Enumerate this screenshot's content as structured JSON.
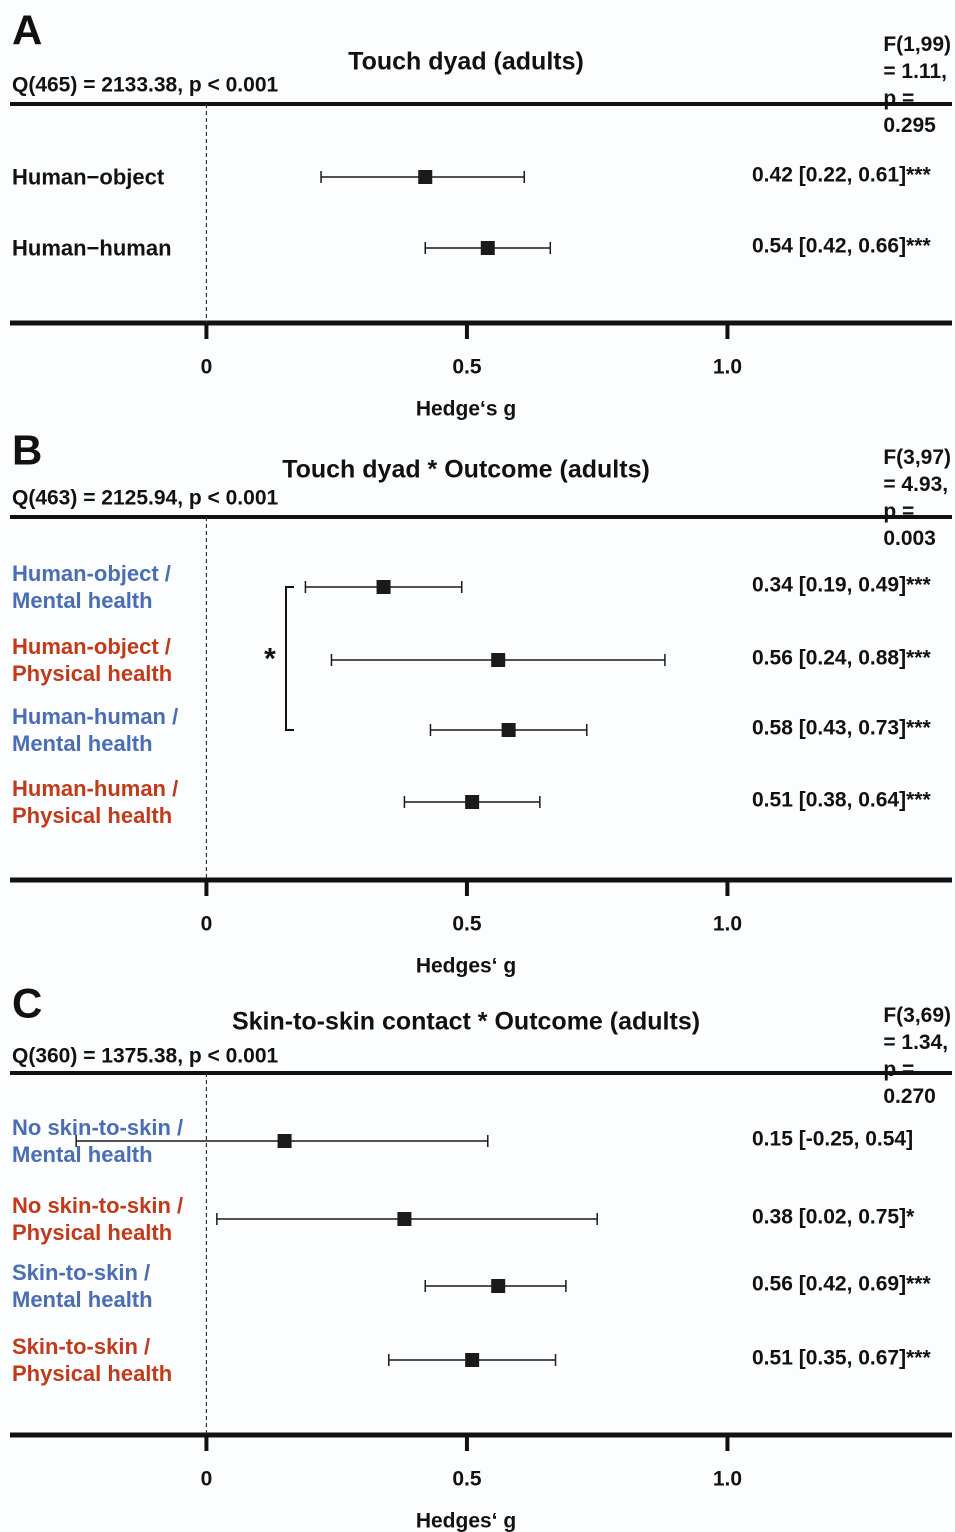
{
  "chart_data": [
    {
      "type": "forest",
      "panel": "A",
      "title": "Touch dyad (adults)",
      "stats_left": "Q(465) = 2133.38, p < 0.001",
      "stats_right": "F(1,99) = 1.11, p = 0.295",
      "categories": [
        "Human−object",
        "Human−human"
      ],
      "label_colors": [
        "#111111",
        "#111111"
      ],
      "values": [
        0.42,
        0.54
      ],
      "lower": [
        0.22,
        0.42
      ],
      "upper": [
        0.61,
        0.66
      ],
      "value_labels": [
        "0.42 [0.22, 0.61]***",
        "0.54 [0.42, 0.66]***"
      ],
      "xlim": [
        -0.377,
        1.431
      ],
      "xticks": [
        0,
        0.5,
        {
          "value": 1,
          "label": "1.0"
        }
      ],
      "reference_line": 0,
      "xlabel": "Hedge‘s g",
      "color": "#1a1a1a"
    },
    {
      "type": "forest",
      "panel": "B",
      "title": "Touch dyad * Outcome (adults)",
      "stats_left": "Q(463) = 2125.94, p < 0.001",
      "stats_right": "F(3,97) = 4.93, p = 0.003",
      "categories": [
        "Human-object /\nMental health",
        "Human-object /\nPhysical health",
        "Human-human /\nMental health",
        "Human-human /\nPhysical health"
      ],
      "label_colors": [
        "#4a6db5",
        "#c23a17",
        "#4a6db5",
        "#c23a17"
      ],
      "values": [
        0.34,
        0.56,
        0.58,
        0.51
      ],
      "lower": [
        0.19,
        0.24,
        0.43,
        0.38
      ],
      "upper": [
        0.49,
        0.88,
        0.73,
        0.64
      ],
      "value_labels": [
        "0.34 [0.19, 0.49]***",
        "0.56 [0.24, 0.88]***",
        "0.58 [0.43, 0.73]***",
        "0.51 [0.38, 0.64]***"
      ],
      "bracket": {
        "text": "*",
        "rows": [
          0,
          2
        ]
      },
      "xlim": [
        -0.377,
        1.431
      ],
      "xticks": [
        0,
        0.5,
        {
          "value": 1,
          "label": "1.0"
        }
      ],
      "reference_line": 0,
      "xlabel": "Hedges‘ g",
      "color": "#1a1a1a"
    },
    {
      "type": "forest",
      "panel": "C",
      "title": "Skin-to-skin contact * Outcome (adults)",
      "stats_left": "Q(360) = 1375.38, p < 0.001",
      "stats_right": "F(3,69) = 1.34, p = 0.270",
      "categories": [
        "No skin-to-skin /\nMental health",
        "No skin-to-skin /\nPhysical health",
        "Skin-to-skin /\nMental health",
        "Skin-to-skin /\nPhysical health"
      ],
      "label_colors": [
        "#4a6db5",
        "#c23a17",
        "#4a6db5",
        "#c23a17"
      ],
      "values": [
        0.15,
        0.38,
        0.56,
        0.51
      ],
      "lower": [
        -0.25,
        0.02,
        0.42,
        0.35
      ],
      "upper": [
        0.54,
        0.75,
        0.69,
        0.67
      ],
      "value_labels": [
        "0.15 [-0.25, 0.54]",
        "0.38 [0.02, 0.75]*",
        "0.56 [0.42, 0.69]***",
        "0.51 [0.35, 0.67]***"
      ],
      "xlim": [
        -0.377,
        1.431
      ],
      "xticks": [
        0,
        0.5,
        {
          "value": 1,
          "label": "1.0"
        }
      ],
      "reference_line": 0,
      "xlabel": "Hedges‘ g",
      "color": "#1a1a1a"
    }
  ]
}
